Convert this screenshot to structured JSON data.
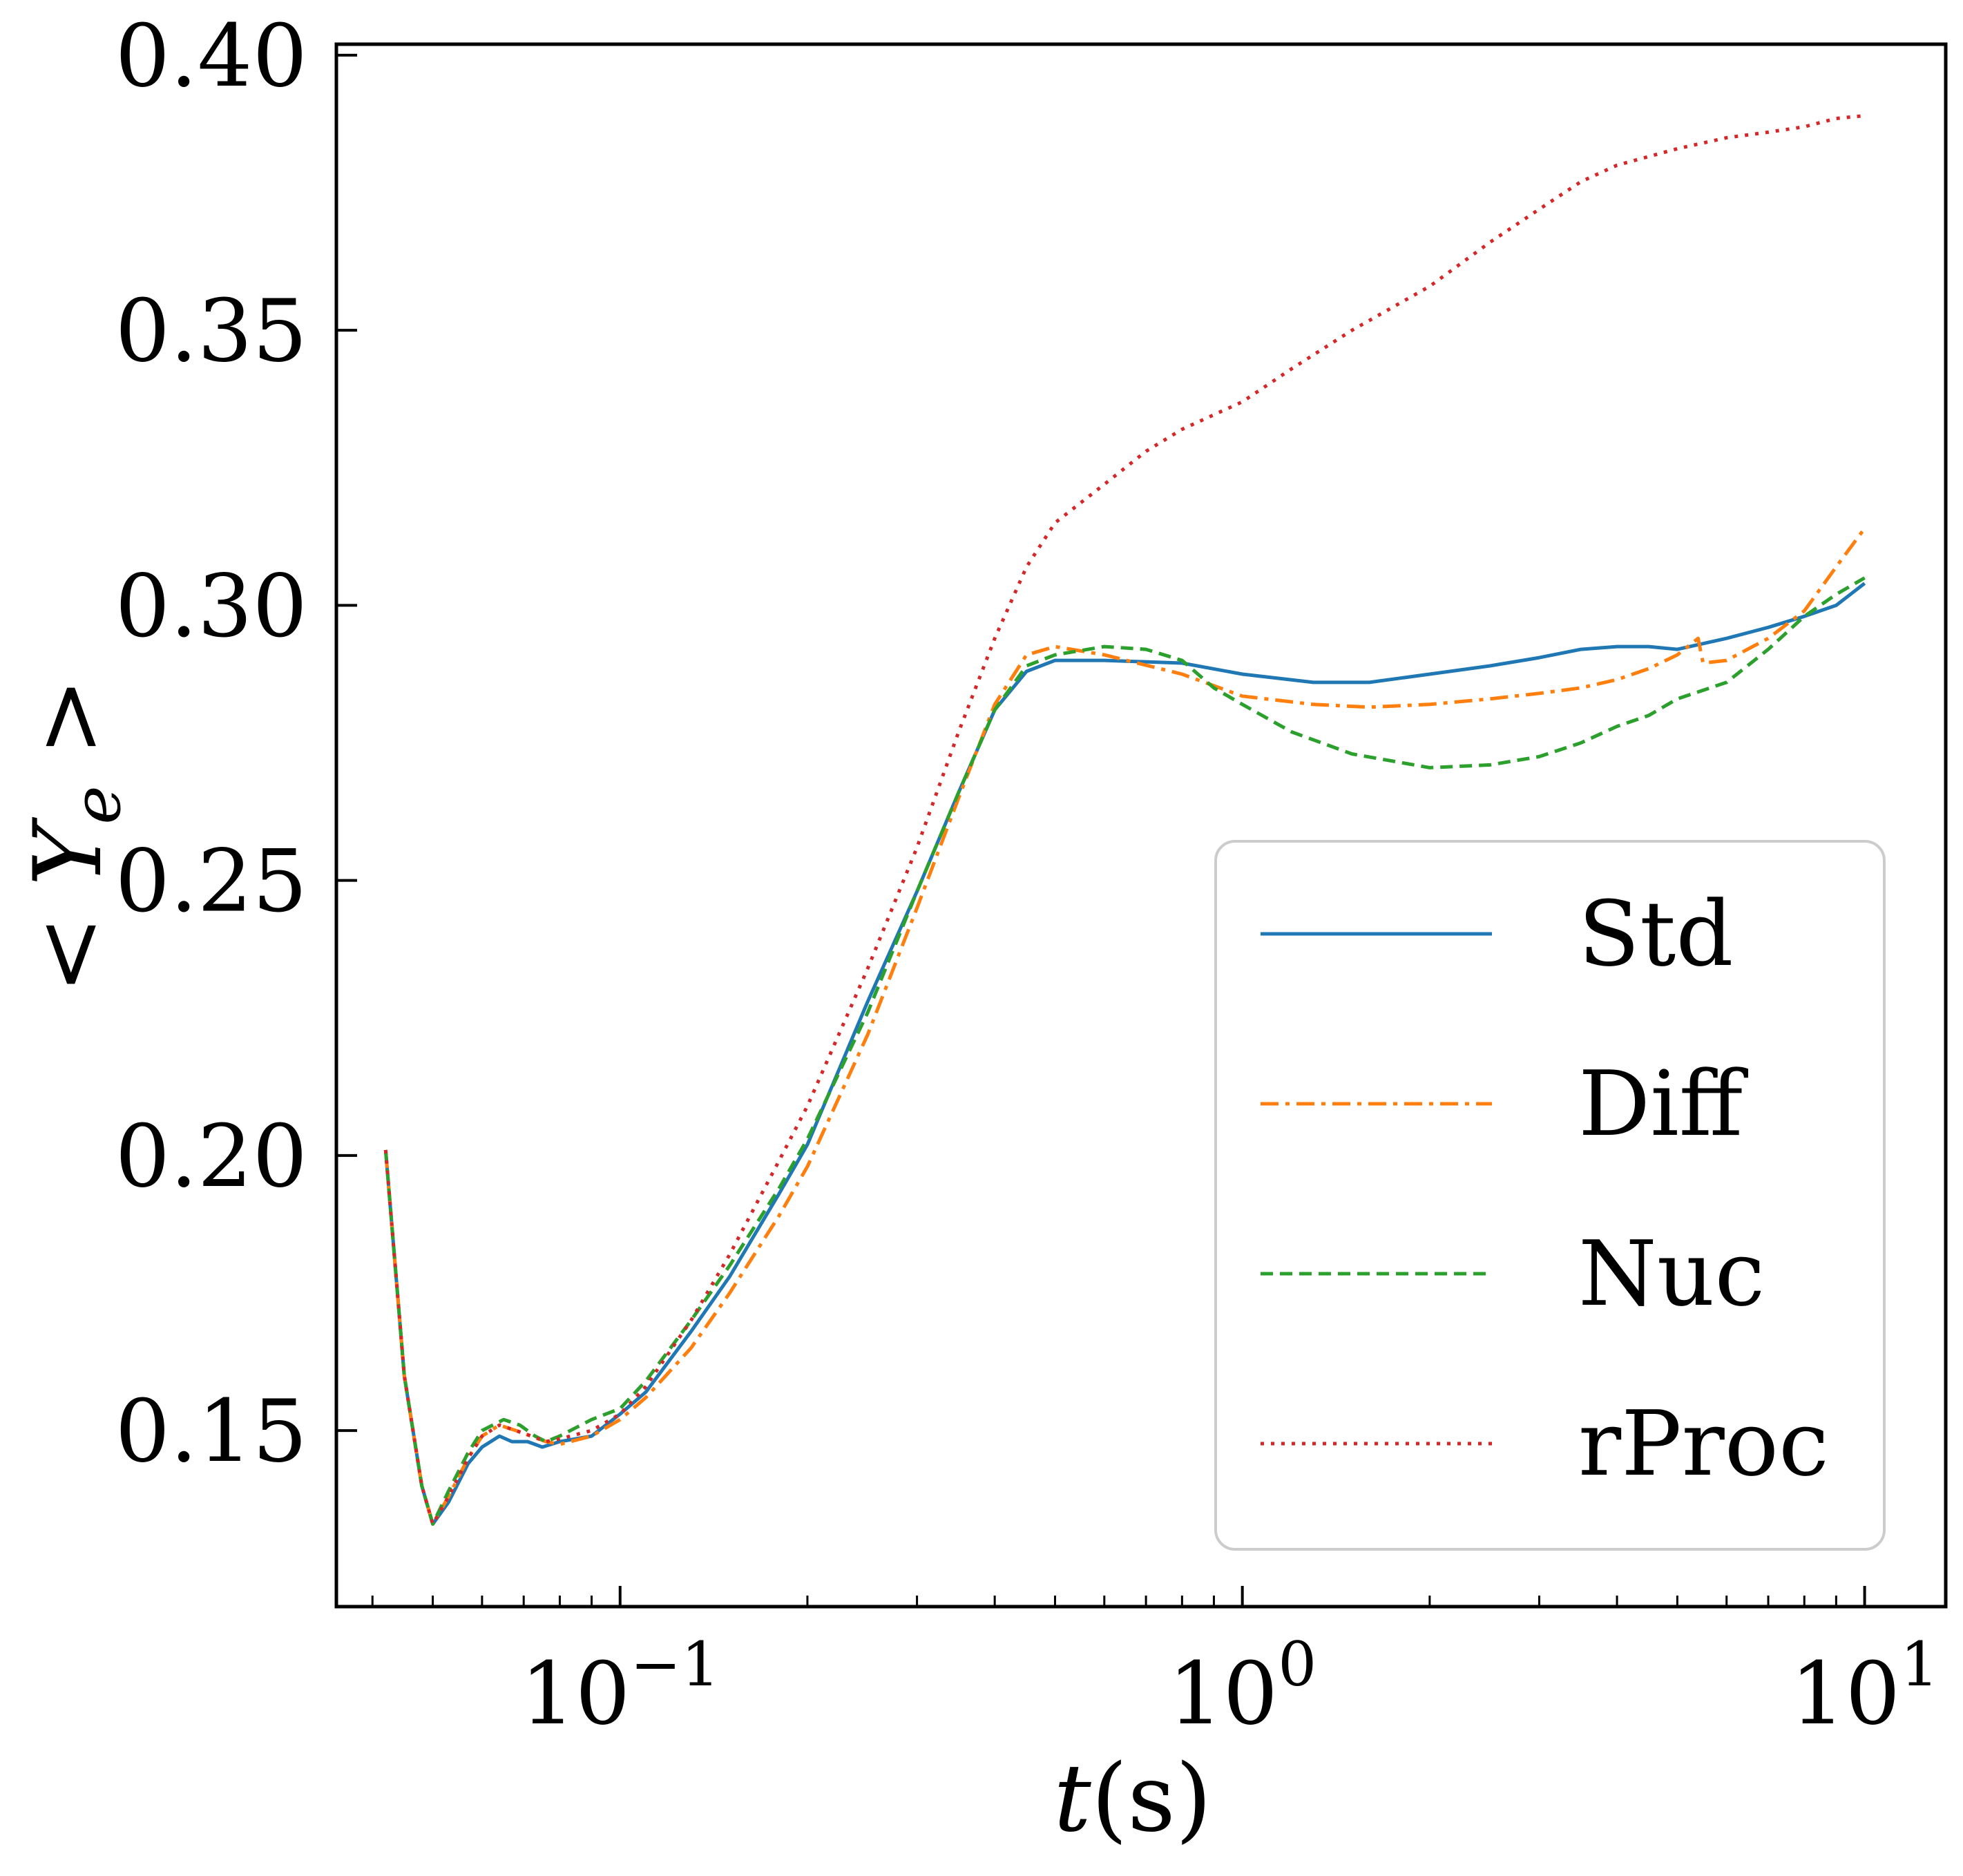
{
  "chart_data": {
    "type": "line",
    "xlabel": "t(s)",
    "ylabel": "< Y_e >",
    "x_scale": "log",
    "xlim": [
      0.035,
      13.5
    ],
    "ylim": [
      0.118,
      0.402
    ],
    "x_ticks": [
      {
        "value": 0.1,
        "base": "10",
        "exp": "−1"
      },
      {
        "value": 1,
        "base": "10",
        "exp": "0"
      },
      {
        "value": 10,
        "base": "10",
        "exp": "1"
      }
    ],
    "y_ticks": [
      {
        "value": 0.15,
        "label": "0.15"
      },
      {
        "value": 0.2,
        "label": "0.20"
      },
      {
        "value": 0.25,
        "label": "0.25"
      },
      {
        "value": 0.3,
        "label": "0.30"
      },
      {
        "value": 0.35,
        "label": "0.35"
      },
      {
        "value": 0.4,
        "label": "0.40"
      }
    ],
    "grid": false,
    "legend_position": "lower-right",
    "series": [
      {
        "name": "Std",
        "color": "#1f77b4",
        "dash": "solid",
        "points": [
          [
            0.042,
            0.201
          ],
          [
            0.045,
            0.16
          ],
          [
            0.048,
            0.14
          ],
          [
            0.05,
            0.133
          ],
          [
            0.053,
            0.137
          ],
          [
            0.057,
            0.144
          ],
          [
            0.06,
            0.147
          ],
          [
            0.064,
            0.149
          ],
          [
            0.067,
            0.148
          ],
          [
            0.071,
            0.148
          ],
          [
            0.075,
            0.147
          ],
          [
            0.08,
            0.148
          ],
          [
            0.09,
            0.149
          ],
          [
            0.1,
            0.153
          ],
          [
            0.11,
            0.157
          ],
          [
            0.13,
            0.168
          ],
          [
            0.15,
            0.178
          ],
          [
            0.18,
            0.193
          ],
          [
            0.2,
            0.202
          ],
          [
            0.25,
            0.228
          ],
          [
            0.3,
            0.248
          ],
          [
            0.35,
            0.266
          ],
          [
            0.4,
            0.281
          ],
          [
            0.45,
            0.288
          ],
          [
            0.5,
            0.29
          ],
          [
            0.6,
            0.29
          ],
          [
            0.8,
            0.2895
          ],
          [
            1.0,
            0.2875
          ],
          [
            1.3,
            0.286
          ],
          [
            1.6,
            0.286
          ],
          [
            2.0,
            0.2875
          ],
          [
            2.5,
            0.289
          ],
          [
            3.0,
            0.2905
          ],
          [
            3.5,
            0.292
          ],
          [
            4.0,
            0.2925
          ],
          [
            4.5,
            0.2925
          ],
          [
            5.0,
            0.292
          ],
          [
            6.0,
            0.294
          ],
          [
            7.0,
            0.296
          ],
          [
            8.0,
            0.298
          ],
          [
            9.0,
            0.3
          ],
          [
            10.0,
            0.304
          ]
        ]
      },
      {
        "name": "Diff",
        "color": "#ff7f0e",
        "dash": "dashdot",
        "points": [
          [
            0.042,
            0.201
          ],
          [
            0.045,
            0.16
          ],
          [
            0.048,
            0.14
          ],
          [
            0.05,
            0.133
          ],
          [
            0.053,
            0.138
          ],
          [
            0.057,
            0.145
          ],
          [
            0.06,
            0.149
          ],
          [
            0.064,
            0.151
          ],
          [
            0.068,
            0.15
          ],
          [
            0.072,
            0.149
          ],
          [
            0.076,
            0.148
          ],
          [
            0.08,
            0.1475
          ],
          [
            0.09,
            0.149
          ],
          [
            0.1,
            0.152
          ],
          [
            0.11,
            0.156
          ],
          [
            0.13,
            0.165
          ],
          [
            0.15,
            0.175
          ],
          [
            0.18,
            0.189
          ],
          [
            0.2,
            0.198
          ],
          [
            0.25,
            0.222
          ],
          [
            0.3,
            0.245
          ],
          [
            0.35,
            0.265
          ],
          [
            0.4,
            0.282
          ],
          [
            0.45,
            0.291
          ],
          [
            0.5,
            0.2925
          ],
          [
            0.6,
            0.291
          ],
          [
            0.8,
            0.2875
          ],
          [
            1.0,
            0.2835
          ],
          [
            1.3,
            0.282
          ],
          [
            1.6,
            0.2815
          ],
          [
            2.0,
            0.282
          ],
          [
            2.5,
            0.283
          ],
          [
            3.0,
            0.284
          ],
          [
            3.5,
            0.285
          ],
          [
            4.0,
            0.2865
          ],
          [
            4.5,
            0.2885
          ],
          [
            5.0,
            0.291
          ],
          [
            5.4,
            0.294
          ],
          [
            5.5,
            0.2895
          ],
          [
            6.0,
            0.29
          ],
          [
            7.0,
            0.294
          ],
          [
            8.0,
            0.299
          ],
          [
            9.0,
            0.307
          ],
          [
            10.0,
            0.314
          ]
        ]
      },
      {
        "name": "Nuc",
        "color": "#2ca02c",
        "dash": "dashed",
        "points": [
          [
            0.042,
            0.201
          ],
          [
            0.045,
            0.16
          ],
          [
            0.048,
            0.14
          ],
          [
            0.05,
            0.133
          ],
          [
            0.053,
            0.139
          ],
          [
            0.057,
            0.146
          ],
          [
            0.06,
            0.15
          ],
          [
            0.065,
            0.152
          ],
          [
            0.069,
            0.151
          ],
          [
            0.073,
            0.149
          ],
          [
            0.076,
            0.148
          ],
          [
            0.08,
            0.149
          ],
          [
            0.09,
            0.152
          ],
          [
            0.1,
            0.154
          ],
          [
            0.11,
            0.159
          ],
          [
            0.13,
            0.17
          ],
          [
            0.15,
            0.18
          ],
          [
            0.18,
            0.194
          ],
          [
            0.2,
            0.203
          ],
          [
            0.25,
            0.226
          ],
          [
            0.3,
            0.248
          ],
          [
            0.35,
            0.266
          ],
          [
            0.4,
            0.281
          ],
          [
            0.45,
            0.289
          ],
          [
            0.5,
            0.291
          ],
          [
            0.6,
            0.2925
          ],
          [
            0.7,
            0.292
          ],
          [
            0.8,
            0.29
          ],
          [
            0.9,
            0.285
          ],
          [
            1.0,
            0.282
          ],
          [
            1.2,
            0.277
          ],
          [
            1.5,
            0.273
          ],
          [
            2.0,
            0.2705
          ],
          [
            2.5,
            0.271
          ],
          [
            3.0,
            0.2725
          ],
          [
            3.5,
            0.275
          ],
          [
            4.0,
            0.278
          ],
          [
            4.5,
            0.28
          ],
          [
            5.0,
            0.283
          ],
          [
            6.0,
            0.286
          ],
          [
            7.0,
            0.292
          ],
          [
            8.0,
            0.298
          ],
          [
            9.0,
            0.302
          ],
          [
            10.0,
            0.305
          ]
        ]
      },
      {
        "name": "rProc",
        "color": "#d62728",
        "dash": "dotted",
        "points": [
          [
            0.042,
            0.201
          ],
          [
            0.045,
            0.16
          ],
          [
            0.048,
            0.14
          ],
          [
            0.05,
            0.133
          ],
          [
            0.053,
            0.138
          ],
          [
            0.057,
            0.145
          ],
          [
            0.06,
            0.149
          ],
          [
            0.064,
            0.151
          ],
          [
            0.068,
            0.15
          ],
          [
            0.072,
            0.149
          ],
          [
            0.076,
            0.148
          ],
          [
            0.08,
            0.1485
          ],
          [
            0.09,
            0.15
          ],
          [
            0.1,
            0.153
          ],
          [
            0.11,
            0.158
          ],
          [
            0.13,
            0.17
          ],
          [
            0.15,
            0.182
          ],
          [
            0.18,
            0.199
          ],
          [
            0.2,
            0.209
          ],
          [
            0.25,
            0.234
          ],
          [
            0.3,
            0.256
          ],
          [
            0.35,
            0.277
          ],
          [
            0.4,
            0.294
          ],
          [
            0.45,
            0.307
          ],
          [
            0.5,
            0.315
          ],
          [
            0.6,
            0.322
          ],
          [
            0.7,
            0.328
          ],
          [
            0.8,
            0.332
          ],
          [
            1.0,
            0.337
          ],
          [
            1.2,
            0.343
          ],
          [
            1.5,
            0.35
          ],
          [
            2.0,
            0.358
          ],
          [
            2.5,
            0.366
          ],
          [
            3.0,
            0.372
          ],
          [
            3.5,
            0.377
          ],
          [
            4.0,
            0.38
          ],
          [
            5.0,
            0.383
          ],
          [
            6.0,
            0.385
          ],
          [
            7.0,
            0.386
          ],
          [
            8.0,
            0.387
          ],
          [
            9.0,
            0.3885
          ],
          [
            10.0,
            0.389
          ]
        ]
      }
    ]
  }
}
